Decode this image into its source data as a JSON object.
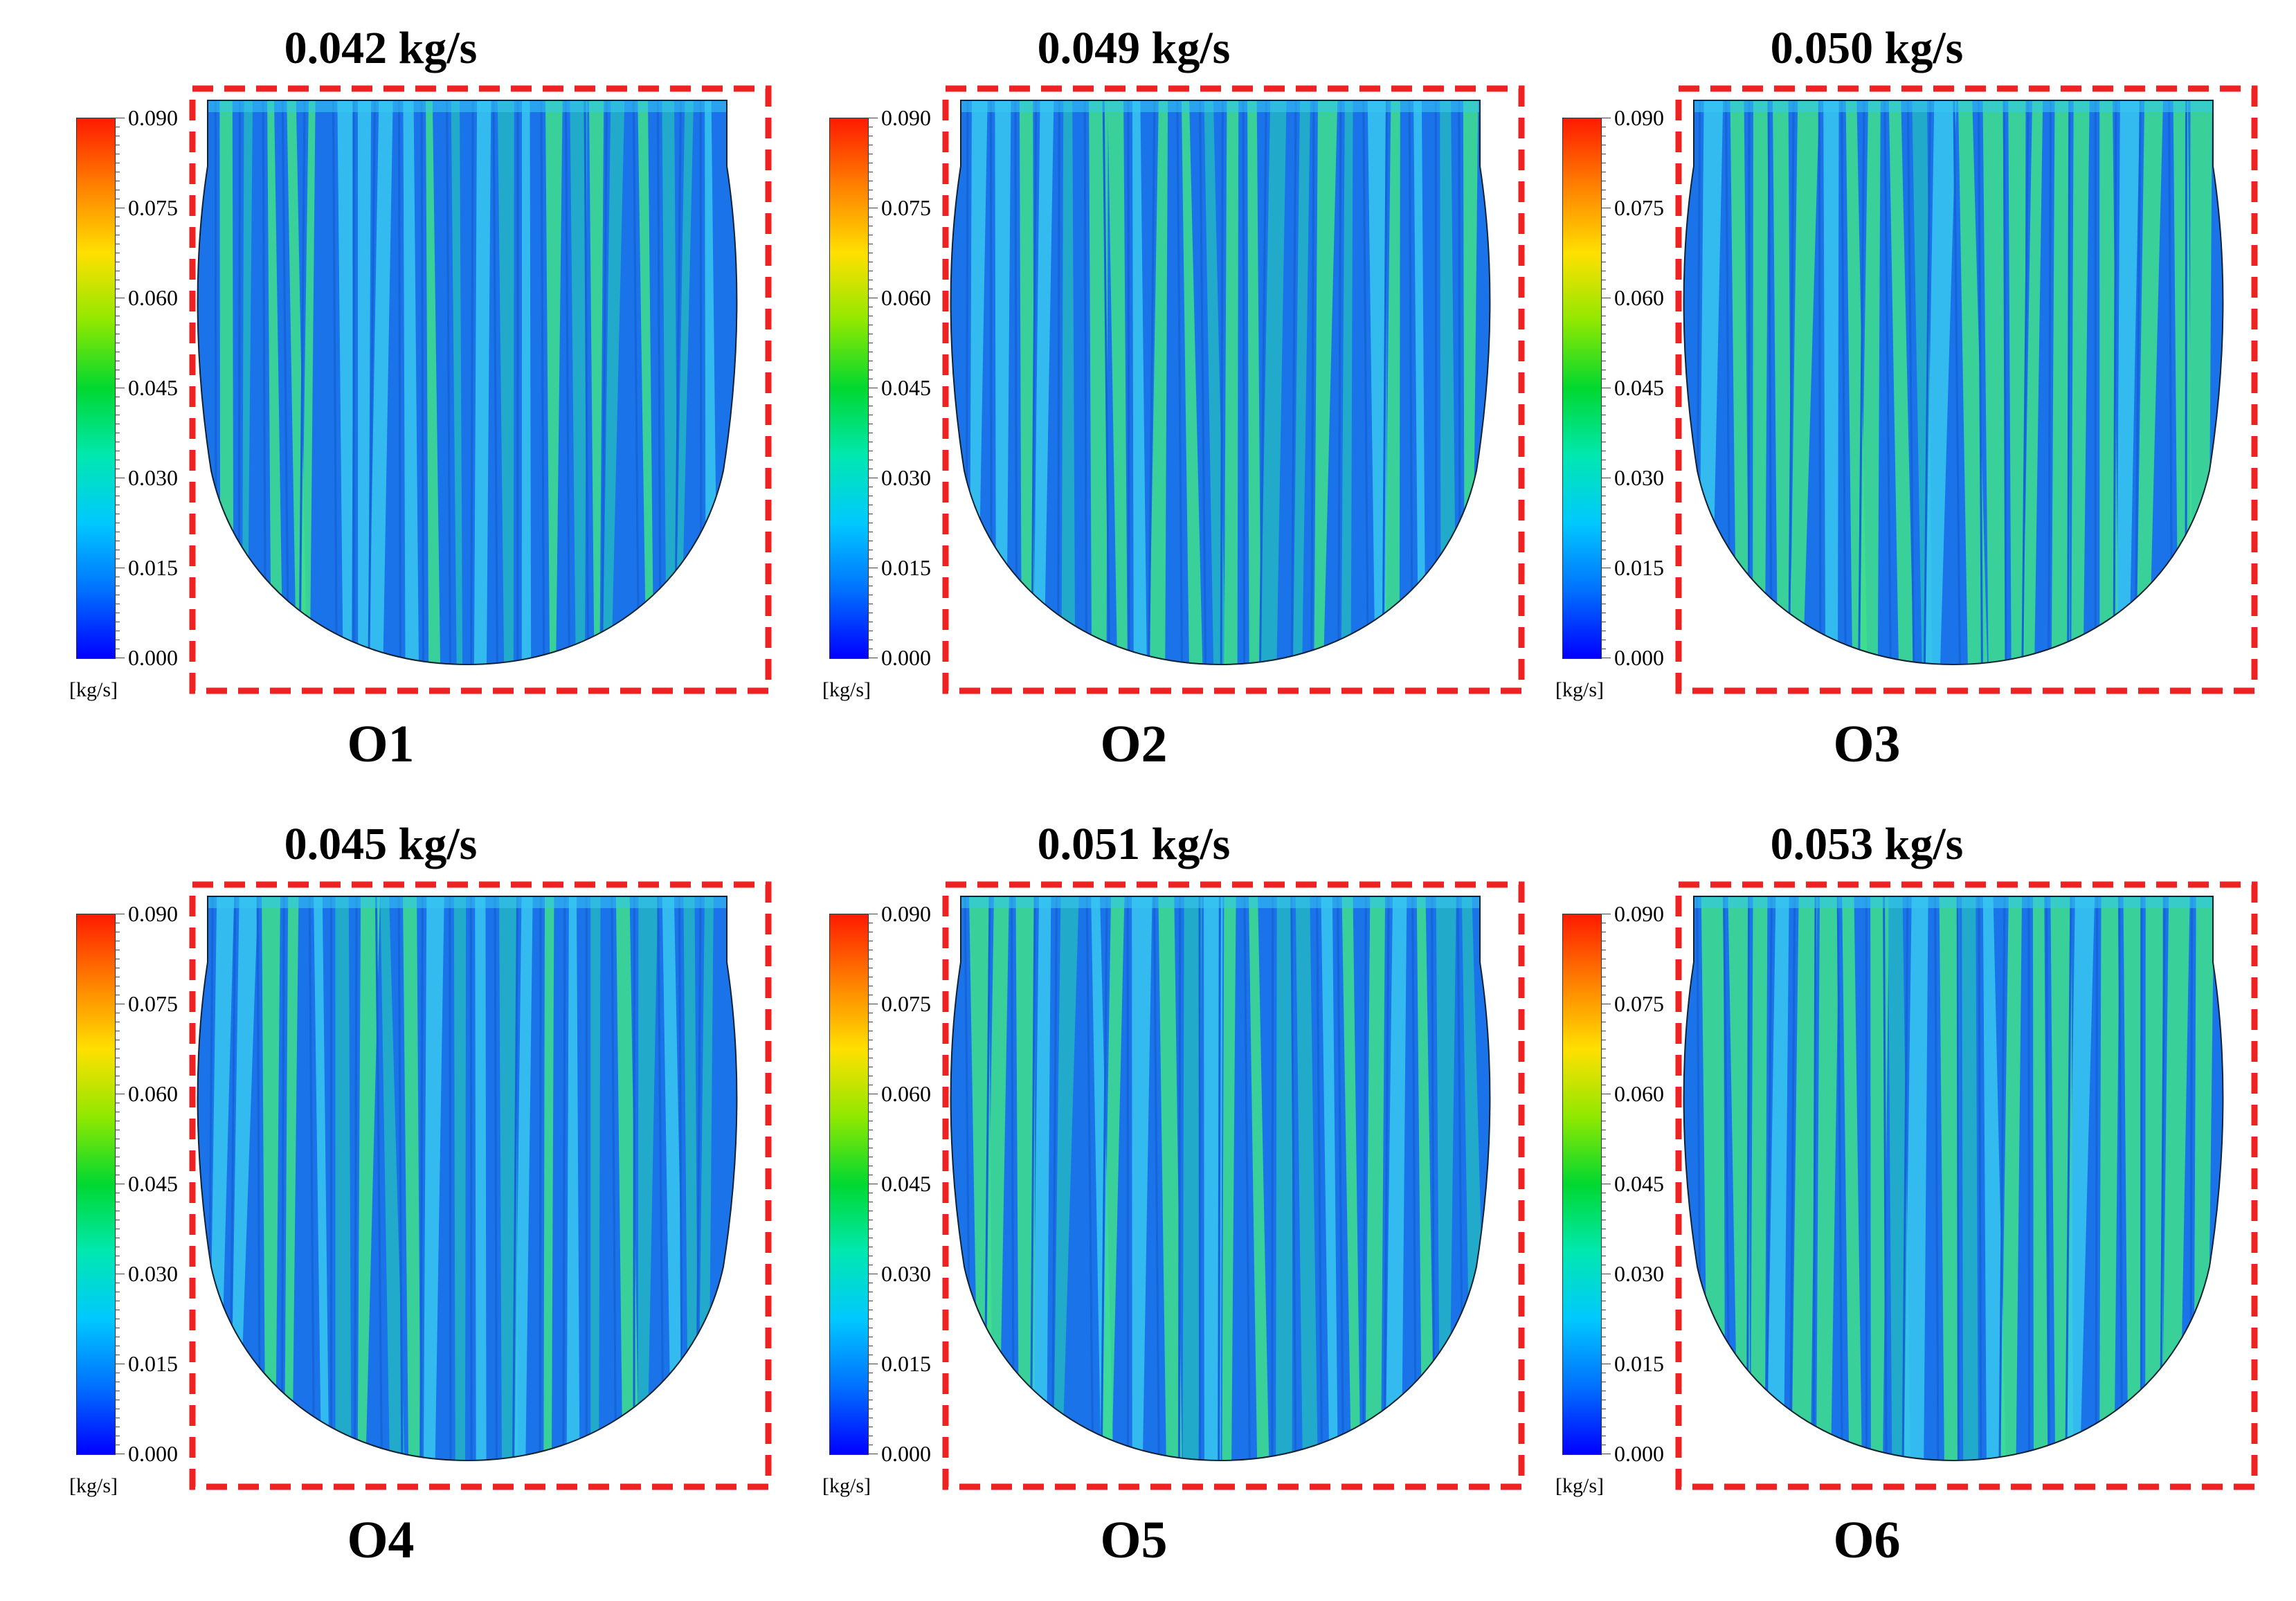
{
  "colors": {
    "frame": "#ee2222",
    "dark_blue": "#1565d8",
    "mid_blue": "#1a73e8",
    "cyan_stripe": "#38c8f0",
    "green_stripe": "#3fe08c",
    "teal_stripe": "#24b4c4"
  },
  "legend": {
    "ticks": [
      "0.090",
      "0.075",
      "0.060",
      "0.045",
      "0.030",
      "0.015",
      "0.000"
    ],
    "unit": "[kg/s]",
    "colormap": [
      "#0000ff",
      "#0070ff",
      "#00c8ff",
      "#00e8b0",
      "#00d830",
      "#90e800",
      "#ffe000",
      "#ff8000",
      "#ff1a00"
    ]
  },
  "panels": [
    {
      "id": "O1",
      "rate": "0.042 kg/s",
      "label": "O1",
      "intensity": 0.15
    },
    {
      "id": "O2",
      "rate": "0.049 kg/s",
      "label": "O2",
      "intensity": 0.35
    },
    {
      "id": "O3",
      "rate": "0.050 kg/s",
      "label": "O3",
      "intensity": 0.6
    },
    {
      "id": "O4",
      "rate": "0.045 kg/s",
      "label": "O4",
      "intensity": 0.3
    },
    {
      "id": "O5",
      "rate": "0.051 kg/s",
      "label": "O5",
      "intensity": 0.45
    },
    {
      "id": "O6",
      "rate": "0.053 kg/s",
      "label": "O6",
      "intensity": 0.6
    }
  ]
}
